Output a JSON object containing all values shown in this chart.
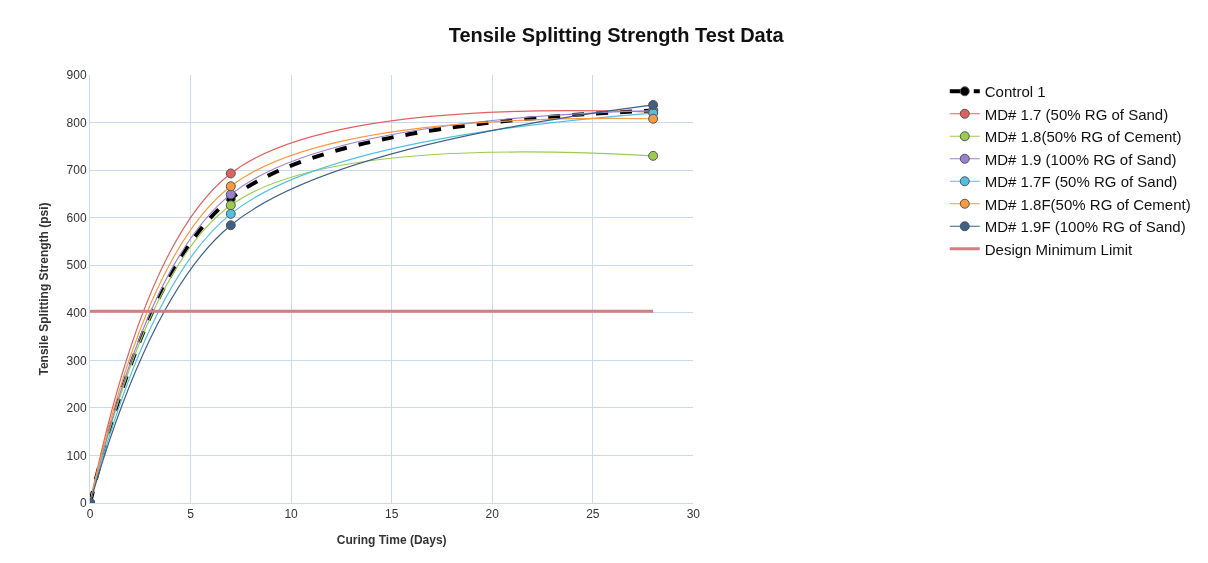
{
  "chart_data": {
    "type": "line",
    "title": "Tensile Splitting Strength Test Data",
    "xlabel": "Curing Time (Days)",
    "ylabel": "Tensile Splitting Strength (psi)",
    "x": [
      0,
      7,
      28
    ],
    "series": [
      {
        "name": "Control 1",
        "color": "#000000",
        "values": [
          0,
          640,
          825
        ],
        "line_style": "dashed"
      },
      {
        "name": "MD# 1.7 (50% RG of Sand)",
        "color": "#e06060",
        "values": [
          0,
          693,
          822
        ]
      },
      {
        "name": "MD# 1.8(50% RG of Cement)",
        "color": "#9bcc50",
        "values": [
          0,
          626,
          730
        ]
      },
      {
        "name": "MD# 1.9 (100% RG of Sand)",
        "color": "#9b7fd0",
        "values": [
          0,
          649,
          825
        ]
      },
      {
        "name": "MD# 1.7F (50% RG of Sand)",
        "color": "#50c0e0",
        "values": [
          0,
          608,
          820
        ]
      },
      {
        "name": "MD# 1.8F(50% RG of Cement)",
        "color": "#f79a40",
        "values": [
          0,
          666,
          808
        ]
      },
      {
        "name": "MD# 1.9F (100% RG of Sand)",
        "color": "#3f5f85",
        "values": [
          0,
          584,
          837
        ]
      },
      {
        "name": "Design Minimum Limit",
        "color": "#d08080",
        "x": [
          0,
          28
        ],
        "values": [
          403,
          403
        ],
        "marker": "none"
      }
    ],
    "xlim": [
      0,
      30
    ],
    "xticks": [
      0,
      5,
      10,
      15,
      20,
      25,
      30
    ],
    "ylim": [
      0,
      900
    ],
    "yticks": [
      0,
      100,
      200,
      300,
      400,
      500,
      600,
      700,
      800,
      900
    ],
    "grid": true,
    "legend": "right",
    "marker": "circle",
    "line_style": "solid"
  }
}
